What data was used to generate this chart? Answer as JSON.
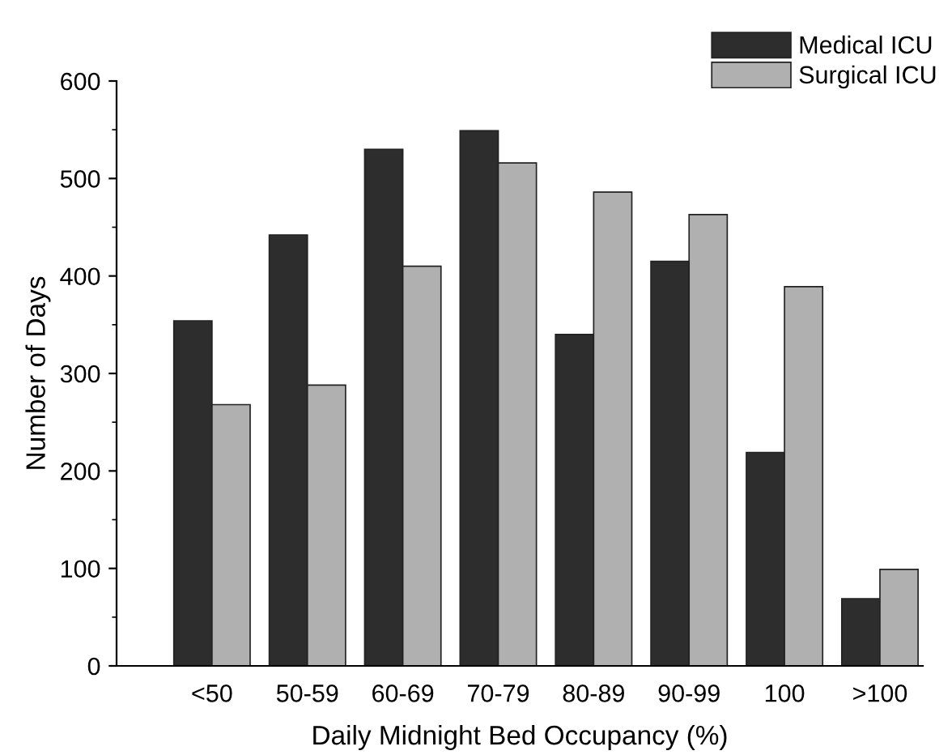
{
  "chart_data": {
    "type": "bar",
    "xlabel": "Daily Midnight Bed Occupancy (%)",
    "ylabel": "Number of Days",
    "categories": [
      "<50",
      "50-59",
      "60-69",
      "70-79",
      "80-89",
      "90-99",
      "100",
      ">100"
    ],
    "series": [
      {
        "name": "Medical ICU",
        "color": "#2d2d2d",
        "values": [
          354,
          442,
          530,
          549,
          340,
          415,
          219,
          69
        ]
      },
      {
        "name": "Surgical ICU",
        "color": "#b0b0b0",
        "values": [
          268,
          288,
          410,
          516,
          486,
          463,
          389,
          99
        ]
      }
    ],
    "ylim": [
      0,
      600
    ],
    "yticks": [
      0,
      100,
      200,
      300,
      400,
      500,
      600
    ],
    "grid": false,
    "legend": "top right"
  }
}
